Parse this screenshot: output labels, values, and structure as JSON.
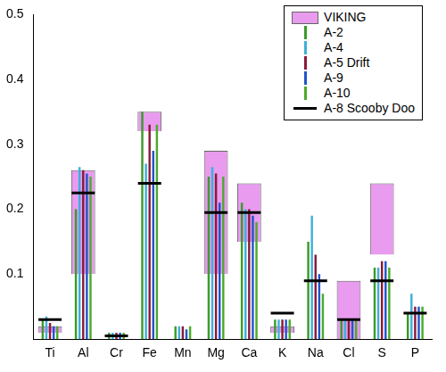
{
  "chart_data": {
    "type": "bar",
    "categories": [
      "Ti",
      "Al",
      "Cr",
      "Fe",
      "Mn",
      "Mg",
      "Ca",
      "K",
      "Na",
      "Cl",
      "S",
      "P"
    ],
    "series": [
      {
        "name": "VIKING",
        "color": "#e89bef",
        "values": [
          [
            0.01,
            0.02
          ],
          [
            0.1,
            0.26
          ],
          null,
          [
            0.32,
            0.35
          ],
          null,
          [
            0.1,
            0.29
          ],
          [
            0.15,
            0.24
          ],
          [
            0.01,
            0.02
          ],
          null,
          [
            0.0,
            0.09
          ],
          [
            0.13,
            0.24
          ],
          null
        ]
      },
      {
        "name": "A-2",
        "color": "#3c9a2c",
        "values": [
          0.03,
          0.2,
          0.01,
          0.35,
          0.02,
          0.25,
          0.21,
          0.03,
          0.15,
          0.03,
          0.11,
          0.04
        ]
      },
      {
        "name": "A-4",
        "color": "#3fb0d9",
        "values": [
          0.035,
          0.265,
          0.01,
          0.27,
          0.02,
          0.265,
          0.2,
          0.03,
          0.19,
          0.03,
          0.11,
          0.07
        ]
      },
      {
        "name": "A-5 Drift",
        "color": "#8b1a3a",
        "values": [
          0.025,
          0.26,
          0.01,
          0.33,
          0.02,
          0.255,
          0.2,
          0.03,
          0.13,
          0.03,
          0.12,
          0.05
        ]
      },
      {
        "name": "A-9",
        "color": "#2255cc",
        "values": [
          0.02,
          0.255,
          0.01,
          0.29,
          0.015,
          0.21,
          0.19,
          0.03,
          0.1,
          0.03,
          0.12,
          0.05
        ]
      },
      {
        "name": "A-10",
        "color": "#4caa2a",
        "values": [
          0.02,
          0.25,
          0.01,
          0.33,
          0.02,
          0.25,
          0.18,
          0.03,
          0.07,
          0.03,
          0.11,
          0.05
        ]
      },
      {
        "name": "A-8 Scooby Doo",
        "color": "#000000",
        "type": "line",
        "marker": "line",
        "line_style": "none",
        "values": [
          0.03,
          0.225,
          0.005,
          0.24,
          null,
          0.195,
          0.195,
          0.04,
          0.09,
          0.03,
          0.09,
          0.04
        ]
      }
    ],
    "ylim": [
      0,
      0.5
    ],
    "yticks": [
      0.1,
      0.2,
      0.3,
      0.4,
      0.5
    ],
    "grid": false,
    "legend": "upper right"
  }
}
